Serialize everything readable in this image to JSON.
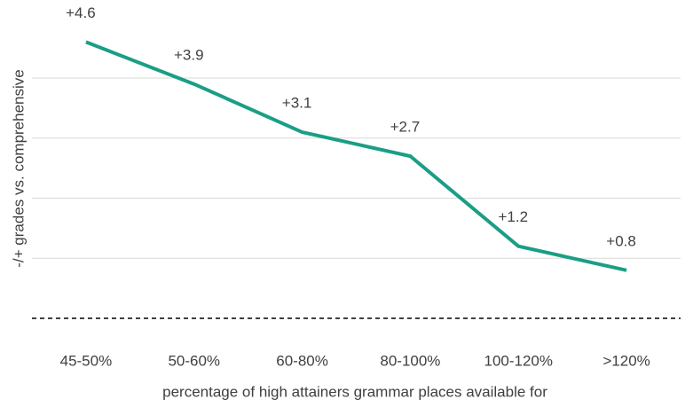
{
  "chart_data": {
    "type": "line",
    "ylabel": "-/+ grades vs. comprehensive",
    "xlabel": "percentage of high attainers grammar places available for",
    "categories": [
      "45-50%",
      "50-60%",
      "60-80%",
      "80-100%",
      "100-120%",
      ">120%"
    ],
    "values": [
      4.6,
      3.9,
      3.1,
      2.7,
      1.2,
      0.8
    ],
    "value_labels": [
      "+4.6",
      "+3.9",
      "+3.1",
      "+2.7",
      "+1.2",
      "+0.8"
    ],
    "color": "#1a9e86",
    "ylim": [
      0,
      5.3
    ],
    "yticks": [
      0,
      1,
      2,
      3,
      4
    ],
    "grid": true
  }
}
